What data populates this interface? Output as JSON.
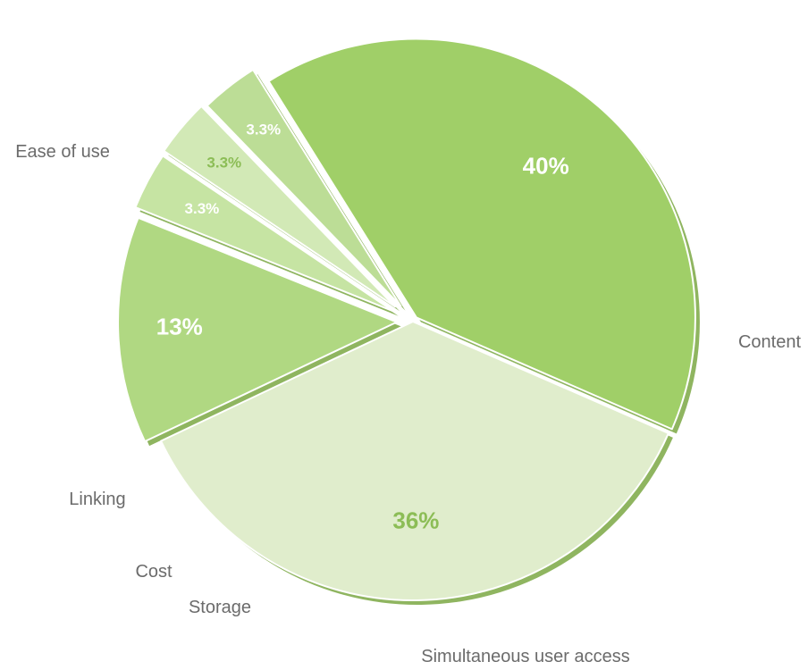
{
  "chart_data": {
    "type": "pie",
    "title": "",
    "legend": "none",
    "slices": [
      {
        "label": "Ease of use",
        "value": 40,
        "value_label": "40%",
        "color": "#a0cf68",
        "label_color": "#ffffff"
      },
      {
        "label": "Content",
        "value": 36,
        "value_label": "36%",
        "color": "#e0edcc",
        "label_color": "#8cbd56"
      },
      {
        "label": "Simultaneous user access",
        "value": 13,
        "value_label": "13%",
        "color": "#b0d882",
        "label_color": "#ffffff"
      },
      {
        "label": "Storage",
        "value": 3.3,
        "value_label": "3.3%",
        "color": "#c6e4a3",
        "label_color": "#ffffff"
      },
      {
        "label": "Cost",
        "value": 3.3,
        "value_label": "3.3%",
        "color": "#d2e9b6",
        "label_color": "#8cbd56"
      },
      {
        "label": "Linking",
        "value": 3.3,
        "value_label": "3.3%",
        "color": "#bcdd96",
        "label_color": "#ffffff"
      }
    ],
    "shadow_color": "#8fb560"
  }
}
